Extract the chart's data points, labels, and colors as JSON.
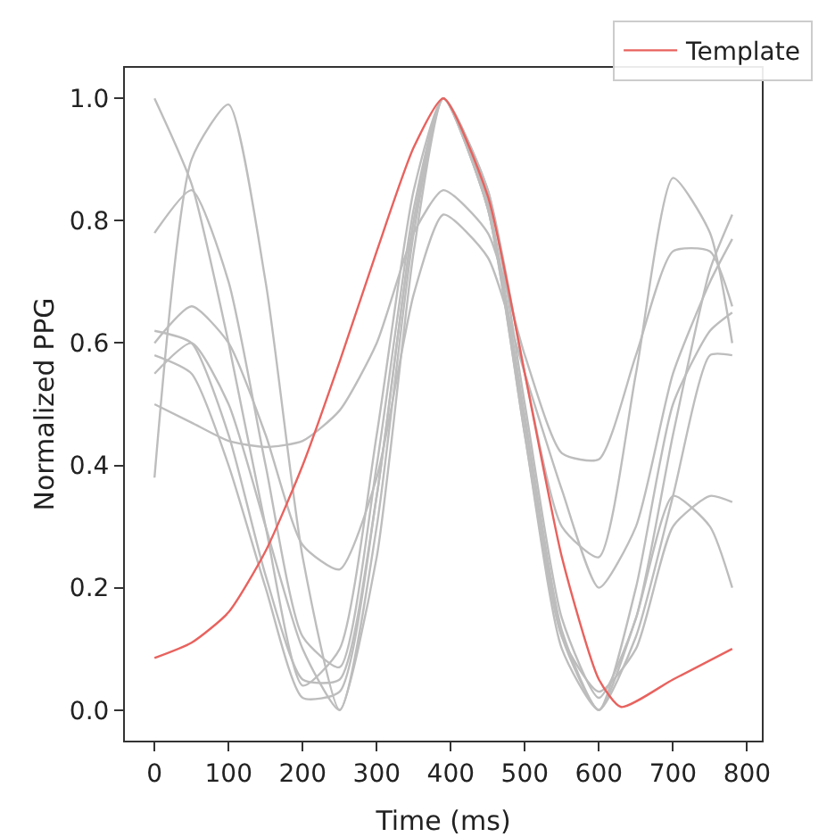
{
  "chart_data": {
    "type": "line",
    "xlabel": "Time (ms)",
    "ylabel": "Normalized PPG",
    "x": [
      0,
      50,
      100,
      150,
      200,
      250,
      300,
      350,
      390,
      450,
      500,
      550,
      600,
      650,
      700,
      750,
      780
    ],
    "series": [
      {
        "color": "#bdbdbd",
        "values": [
          1.0,
          0.86,
          0.6,
          0.3,
          0.04,
          0.1,
          0.45,
          0.85,
          1.0,
          0.85,
          0.5,
          0.15,
          0.02,
          0.15,
          0.45,
          0.72,
          0.81
        ]
      },
      {
        "color": "#bdbdbd",
        "values": [
          0.38,
          0.9,
          0.99,
          0.7,
          0.25,
          0.0,
          0.25,
          0.75,
          1.0,
          0.82,
          0.45,
          0.1,
          0.0,
          0.15,
          0.35,
          0.3,
          0.2
        ]
      },
      {
        "color": "#bdbdbd",
        "values": [
          0.78,
          0.85,
          0.7,
          0.4,
          0.12,
          0.07,
          0.4,
          0.82,
          1.0,
          0.85,
          0.55,
          0.3,
          0.25,
          0.55,
          0.87,
          0.78,
          0.6
        ]
      },
      {
        "color": "#bdbdbd",
        "values": [
          0.5,
          0.47,
          0.44,
          0.43,
          0.44,
          0.49,
          0.6,
          0.78,
          0.85,
          0.78,
          0.58,
          0.42,
          0.41,
          0.58,
          0.75,
          0.75,
          0.66
        ]
      },
      {
        "color": "#bdbdbd",
        "values": [
          0.6,
          0.66,
          0.6,
          0.45,
          0.27,
          0.23,
          0.38,
          0.68,
          0.81,
          0.74,
          0.55,
          0.36,
          0.2,
          0.3,
          0.55,
          0.7,
          0.77
        ]
      },
      {
        "color": "#bdbdbd",
        "values": [
          0.62,
          0.6,
          0.45,
          0.22,
          0.05,
          0.05,
          0.35,
          0.8,
          1.0,
          0.82,
          0.45,
          0.12,
          0.03,
          0.1,
          0.3,
          0.35,
          0.34
        ]
      },
      {
        "color": "#bdbdbd",
        "values": [
          0.55,
          0.6,
          0.5,
          0.3,
          0.1,
          0.0,
          0.3,
          0.78,
          1.0,
          0.82,
          0.47,
          0.12,
          0.0,
          0.2,
          0.5,
          0.62,
          0.65
        ]
      },
      {
        "color": "#bdbdbd",
        "values": [
          0.58,
          0.55,
          0.4,
          0.2,
          0.02,
          0.03,
          0.35,
          0.8,
          1.0,
          0.83,
          0.48,
          0.13,
          0.0,
          0.12,
          0.35,
          0.58,
          0.58
        ]
      },
      {
        "name": "Template",
        "color": "#e8625e",
        "x": [
          0,
          50,
          100,
          150,
          200,
          250,
          300,
          350,
          390,
          450,
          500,
          550,
          600,
          630,
          700,
          780
        ],
        "values": [
          0.085,
          0.11,
          0.16,
          0.26,
          0.4,
          0.57,
          0.75,
          0.92,
          1.0,
          0.84,
          0.55,
          0.25,
          0.05,
          0.005,
          0.05,
          0.1
        ]
      }
    ],
    "xlim": [
      -40,
      820
    ],
    "xticks": [
      0,
      100,
      200,
      300,
      400,
      500,
      600,
      700,
      800
    ],
    "ylim": [
      -0.05,
      1.05
    ],
    "yticks": [
      {
        "value": 0,
        "label": "0.0"
      },
      {
        "value": 0.2,
        "label": "0.2"
      },
      {
        "value": 0.4,
        "label": "0.4"
      },
      {
        "value": 0.6,
        "label": "0.6"
      },
      {
        "value": 0.8,
        "label": "0.8"
      },
      {
        "value": 1,
        "label": "1.0"
      }
    ],
    "grid": false,
    "legend": "top right",
    "marker": "none",
    "line_style": "solid"
  }
}
